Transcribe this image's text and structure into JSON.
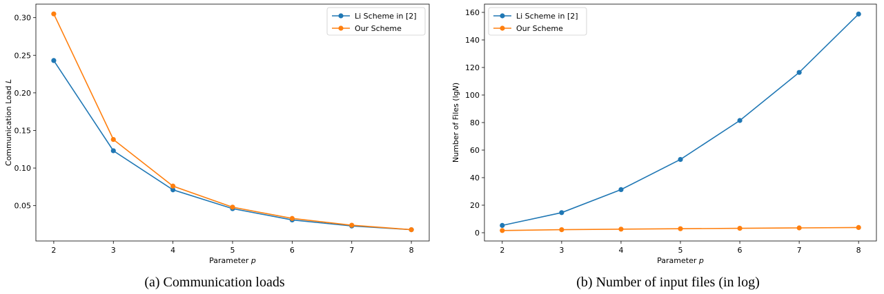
{
  "colors": {
    "li": "#1f77b4",
    "ours": "#ff7f0e"
  },
  "chart_data": [
    {
      "type": "line",
      "caption": "(a) Communication loads",
      "xlabel": "Parameter",
      "xlabel_var": "p",
      "ylabel": "Communication Load",
      "ylabel_var": "L",
      "x": [
        2,
        3,
        4,
        5,
        6,
        7,
        8
      ],
      "xlim": [
        1.7,
        8.3
      ],
      "ylim": [
        0.003,
        0.318
      ],
      "xticks": [
        2,
        3,
        4,
        5,
        6,
        7,
        8
      ],
      "yticks": [
        0.05,
        0.1,
        0.15,
        0.2,
        0.25,
        0.3
      ],
      "ytick_labels": [
        "0.05",
        "0.10",
        "0.15",
        "0.20",
        "0.25",
        "0.30"
      ],
      "legend": "top-right",
      "series": [
        {
          "name": "Li Scheme in [2]",
          "color_key": "li",
          "values": [
            0.243,
            0.123,
            0.071,
            0.046,
            0.031,
            0.023,
            0.018
          ]
        },
        {
          "name": "Our Scheme",
          "color_key": "ours",
          "values": [
            0.305,
            0.138,
            0.076,
            0.048,
            0.033,
            0.024,
            0.018
          ]
        }
      ]
    },
    {
      "type": "line",
      "caption": "(b) Number of input files (in log)",
      "xlabel": "Parameter",
      "xlabel_var": "p",
      "ylabel": "Number of Files (lg",
      "ylabel_var": "N",
      "ylabel_suffix": ")",
      "x": [
        2,
        3,
        4,
        5,
        6,
        7,
        8
      ],
      "xlim": [
        1.7,
        8.3
      ],
      "ylim": [
        -6,
        166
      ],
      "xticks": [
        2,
        3,
        4,
        5,
        6,
        7,
        8
      ],
      "yticks": [
        0,
        20,
        40,
        60,
        80,
        100,
        120,
        140,
        160
      ],
      "ytick_labels": [
        "0",
        "20",
        "40",
        "60",
        "80",
        "100",
        "120",
        "140",
        "160"
      ],
      "legend": "top-left",
      "series": [
        {
          "name": "Li Scheme in [2]",
          "color_key": "li",
          "values": [
            5.3,
            14.6,
            31.3,
            53.2,
            81.5,
            116.4,
            158.8
          ]
        },
        {
          "name": "Our Scheme",
          "color_key": "ours",
          "values": [
            1.6,
            2.2,
            2.6,
            2.9,
            3.2,
            3.5,
            3.8
          ]
        }
      ]
    }
  ]
}
